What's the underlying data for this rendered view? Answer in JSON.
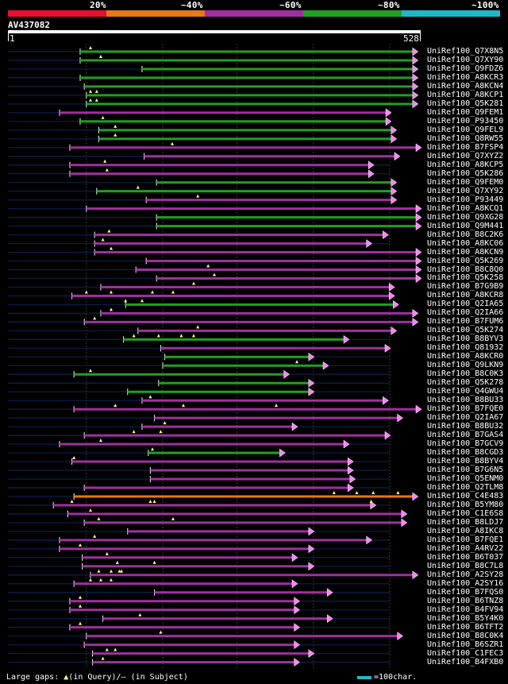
{
  "legend": {
    "markers": [
      "20%",
      "~40%",
      "~60%",
      "~80%",
      "~100%"
    ],
    "colors": [
      "#e8102c",
      "#e87818",
      "#a030a0",
      "#20a020",
      "#20b8c8"
    ]
  },
  "query": {
    "id": "AV437082",
    "start": "1",
    "end": "528",
    "length": 528
  },
  "footer": {
    "gaps_prefix": "Large gaps:",
    "gaps_query": "(in Query)/",
    "gaps_subject": "(in Subject)",
    "scale_label": "=100char."
  },
  "hits": [
    {
      "label": "UniRef100_Q7X8N5",
      "color": "#20a020",
      "start": 0.175,
      "end": 0.992,
      "gaps": [
        0.2
      ]
    },
    {
      "label": "UniRef100_Q7XY90",
      "color": "#20a020",
      "start": 0.175,
      "end": 0.992,
      "gaps": [
        0.225
      ]
    },
    {
      "label": "UniRef100_Q9FDZ6",
      "color": "#20a020",
      "start": 0.325,
      "end": 0.992,
      "gaps": []
    },
    {
      "label": "UniRef100_A8KCR3",
      "color": "#20a020",
      "start": 0.175,
      "end": 0.992,
      "gaps": []
    },
    {
      "label": "UniRef100_A8KCN4",
      "color": "#20a020",
      "start": 0.185,
      "end": 0.992,
      "gaps": []
    },
    {
      "label": "UniRef100_A8KCP1",
      "color": "#20a020",
      "start": 0.19,
      "end": 0.992,
      "gaps": [
        0.2,
        0.215
      ]
    },
    {
      "label": "UniRef100_Q5K281",
      "color": "#20a020",
      "start": 0.19,
      "end": 0.992,
      "gaps": [
        0.2,
        0.215
      ]
    },
    {
      "label": "UniRef100_Q9FEM1",
      "color": "#a030a0",
      "start": 0.125,
      "end": 0.927,
      "gaps": []
    },
    {
      "label": "UniRef100_P93450",
      "color": "#20a020",
      "start": 0.175,
      "end": 0.927,
      "gaps": [
        0.23
      ]
    },
    {
      "label": "UniRef100_Q9FEL9",
      "color": "#20a020",
      "start": 0.22,
      "end": 0.94,
      "gaps": [
        0.26
      ]
    },
    {
      "label": "UniRef100_Q8RW55",
      "color": "#20a020",
      "start": 0.22,
      "end": 0.94,
      "gaps": [
        0.26
      ]
    },
    {
      "label": "UniRef100_B7FSP4",
      "color": "#a030a0",
      "start": 0.15,
      "end": 1.008,
      "gaps": [
        0.398
      ]
    },
    {
      "label": "UniRef100_Q7XYZ2",
      "color": "#a030a0",
      "start": 0.33,
      "end": 0.948,
      "gaps": []
    },
    {
      "label": "UniRef100_A8KCP5",
      "color": "#a030a0",
      "start": 0.15,
      "end": 0.885,
      "gaps": [
        0.235
      ]
    },
    {
      "label": "UniRef100_Q5K286",
      "color": "#a030a0",
      "start": 0.15,
      "end": 0.885,
      "gaps": [
        0.24
      ]
    },
    {
      "label": "UniRef100_Q9FEM0",
      "color": "#20a020",
      "start": 0.36,
      "end": 0.94,
      "gaps": []
    },
    {
      "label": "UniRef100_Q7XY92",
      "color": "#20a020",
      "start": 0.215,
      "end": 0.94,
      "gaps": [
        0.315
      ]
    },
    {
      "label": "UniRef100_P93449",
      "color": "#a030a0",
      "start": 0.335,
      "end": 0.94,
      "gaps": [
        0.46
      ]
    },
    {
      "label": "UniRef100_A8KCQ1",
      "color": "#a030a0",
      "start": 0.19,
      "end": 1.008,
      "gaps": []
    },
    {
      "label": "UniRef100_Q9XG28",
      "color": "#20a020",
      "start": 0.36,
      "end": 1.008,
      "gaps": []
    },
    {
      "label": "UniRef100_Q9M441",
      "color": "#20a020",
      "start": 0.36,
      "end": 1.008,
      "gaps": []
    },
    {
      "label": "UniRef100_B8C2K6",
      "color": "#a030a0",
      "start": 0.21,
      "end": 0.92,
      "gaps": [
        0.245
      ]
    },
    {
      "label": "UniRef100_A8KC06",
      "color": "#a030a0",
      "start": 0.21,
      "end": 0.88,
      "gaps": [
        0.23
      ]
    },
    {
      "label": "UniRef100_A8KCN9",
      "color": "#a030a0",
      "start": 0.21,
      "end": 1.008,
      "gaps": [
        0.25
      ]
    },
    {
      "label": "UniRef100_Q5K269",
      "color": "#a030a0",
      "start": 0.335,
      "end": 1.008,
      "gaps": []
    },
    {
      "label": "UniRef100_B8C8Q0",
      "color": "#a030a0",
      "start": 0.31,
      "end": 1.008,
      "gaps": [
        0.485
      ]
    },
    {
      "label": "UniRef100_Q5K258",
      "color": "#a030a0",
      "start": 0.36,
      "end": 1.008,
      "gaps": [
        0.5
      ]
    },
    {
      "label": "UniRef100_B7G9B9",
      "color": "#a030a0",
      "start": 0.225,
      "end": 0.935,
      "gaps": [
        0.45
      ]
    },
    {
      "label": "UniRef100_A8KCR8",
      "color": "#a030a0",
      "start": 0.155,
      "end": 0.935,
      "gaps": [
        0.19,
        0.25,
        0.35,
        0.4
      ]
    },
    {
      "label": "UniRef100_Q2IA65",
      "color": "#20a020",
      "start": 0.285,
      "end": 0.945,
      "gaps": [
        0.285,
        0.325
      ]
    },
    {
      "label": "UniRef100_Q2IA66",
      "color": "#a030a0",
      "start": 0.225,
      "end": 0.992,
      "gaps": [
        0.25
      ]
    },
    {
      "label": "UniRef100_B7FUM6",
      "color": "#a030a0",
      "start": 0.185,
      "end": 0.992,
      "gaps": [
        0.21
      ]
    },
    {
      "label": "UniRef100_Q5K274",
      "color": "#a030a0",
      "start": 0.315,
      "end": 0.94,
      "gaps": [
        0.46
      ]
    },
    {
      "label": "UniRef100_B8BYV3",
      "color": "#20a020",
      "start": 0.28,
      "end": 0.825,
      "gaps": [
        0.305,
        0.365,
        0.42,
        0.45
      ]
    },
    {
      "label": "UniRef100_Q81932",
      "color": "#a030a0",
      "start": 0.37,
      "end": 0.925,
      "gaps": []
    },
    {
      "label": "UniRef100_A8KCR0",
      "color": "#20a020",
      "start": 0.38,
      "end": 0.74,
      "gaps": []
    },
    {
      "label": "UniRef100_Q9LKN9",
      "color": "#20a020",
      "start": 0.375,
      "end": 0.775,
      "gaps": [
        0.7
      ]
    },
    {
      "label": "UniRef100_B8C0K3",
      "color": "#20a020",
      "start": 0.16,
      "end": 0.68,
      "gaps": [
        0.2
      ]
    },
    {
      "label": "UniRef100_Q5K278",
      "color": "#20a020",
      "start": 0.365,
      "end": 0.74,
      "gaps": []
    },
    {
      "label": "UniRef100_Q4GWU4",
      "color": "#20a020",
      "start": 0.29,
      "end": 0.74,
      "gaps": []
    },
    {
      "label": "UniRef100_B8BU33",
      "color": "#a030a0",
      "start": 0.325,
      "end": 0.92,
      "gaps": [
        0.345
      ]
    },
    {
      "label": "UniRef100_B7FQE0",
      "color": "#a030a0",
      "start": 0.16,
      "end": 1.008,
      "gaps": [
        0.26,
        0.425,
        0.65
      ]
    },
    {
      "label": "UniRef100_Q2IA67",
      "color": "#a030a0",
      "start": 0.355,
      "end": 0.955,
      "gaps": []
    },
    {
      "label": "UniRef100_B8BU32",
      "color": "#a030a0",
      "start": 0.325,
      "end": 0.7,
      "gaps": [
        0.38
      ]
    },
    {
      "label": "UniRef100_B7GAS4",
      "color": "#a030a0",
      "start": 0.185,
      "end": 0.925,
      "gaps": [
        0.305,
        0.37
      ]
    },
    {
      "label": "UniRef100_B7GCV9",
      "color": "#a030a0",
      "start": 0.125,
      "end": 0.825,
      "gaps": [
        0.225
      ]
    },
    {
      "label": "UniRef100_B8CGD3",
      "color": "#20a020",
      "start": 0.34,
      "end": 0.67,
      "gaps": [
        0.35
      ]
    },
    {
      "label": "UniRef100_B8BYV4",
      "color": "#a030a0",
      "start": 0.155,
      "end": 0.835,
      "gaps": [
        0.16
      ]
    },
    {
      "label": "UniRef100_B7G6N5",
      "color": "#a030a0",
      "start": 0.345,
      "end": 0.835,
      "gaps": []
    },
    {
      "label": "UniRef100_Q5ENM0",
      "color": "#a030a0",
      "start": 0.345,
      "end": 0.84,
      "gaps": []
    },
    {
      "label": "UniRef100_Q2TLM8",
      "color": "#a030a0",
      "start": 0.185,
      "end": 0.835,
      "gaps": []
    },
    {
      "label": "UniRef100_C4E483",
      "color": "#e87818",
      "start": 0.16,
      "end": 0.992,
      "gaps": [
        0.79,
        0.845,
        0.885,
        0.945
      ]
    },
    {
      "label": "UniRef100_B5YM80",
      "color": "#a030a0",
      "start": 0.11,
      "end": 0.89,
      "gaps": [
        0.155,
        0.345,
        0.355,
        0.88
      ]
    },
    {
      "label": "UniRef100_C1E6S8",
      "color": "#a030a0",
      "start": 0.145,
      "end": 0.965,
      "gaps": [
        0.2
      ]
    },
    {
      "label": "UniRef100_B8LDJ7",
      "color": "#a030a0",
      "start": 0.185,
      "end": 0.965,
      "gaps": [
        0.22,
        0.4
      ]
    },
    {
      "label": "UniRef100_A8IKC8",
      "color": "#a030a0",
      "start": 0.29,
      "end": 0.74,
      "gaps": []
    },
    {
      "label": "UniRef100_B7FQE1",
      "color": "#a030a0",
      "start": 0.125,
      "end": 0.88,
      "gaps": [
        0.21
      ]
    },
    {
      "label": "UniRef100_A4RV22",
      "color": "#a030a0",
      "start": 0.125,
      "end": 0.74,
      "gaps": [
        0.175
      ]
    },
    {
      "label": "UniRef100_B6T037",
      "color": "#a030a0",
      "start": 0.18,
      "end": 0.7,
      "gaps": [
        0.24
      ]
    },
    {
      "label": "UniRef100_B8C7L8",
      "color": "#a030a0",
      "start": 0.18,
      "end": 0.74,
      "gaps": [
        0.265,
        0.355
      ]
    },
    {
      "label": "UniRef100_A2SY28",
      "color": "#a030a0",
      "start": 0.2,
      "end": 0.992,
      "gaps": [
        0.22,
        0.25,
        0.27,
        0.275
      ]
    },
    {
      "label": "UniRef100_A2SY16",
      "color": "#a030a0",
      "start": 0.16,
      "end": 0.7,
      "gaps": [
        0.2,
        0.225,
        0.25
      ]
    },
    {
      "label": "UniRef100_B7FQS0",
      "color": "#a030a0",
      "start": 0.355,
      "end": 0.785,
      "gaps": []
    },
    {
      "label": "UniRef100_B6TNZ8",
      "color": "#a030a0",
      "start": 0.15,
      "end": 0.705,
      "gaps": [
        0.175
      ]
    },
    {
      "label": "UniRef100_B4FV94",
      "color": "#a030a0",
      "start": 0.15,
      "end": 0.705,
      "gaps": [
        0.175
      ]
    },
    {
      "label": "UniRef100_B5Y4K0",
      "color": "#a030a0",
      "start": 0.23,
      "end": 0.785,
      "gaps": [
        0.32
      ]
    },
    {
      "label": "UniRef100_B6TFT2",
      "color": "#a030a0",
      "start": 0.15,
      "end": 0.705,
      "gaps": [
        0.175
      ]
    },
    {
      "label": "UniRef100_B8C0K4",
      "color": "#a030a0",
      "start": 0.19,
      "end": 0.955,
      "gaps": [
        0.37
      ]
    },
    {
      "label": "UniRef100_B6SZR1",
      "color": "#a030a0",
      "start": 0.185,
      "end": 0.705,
      "gaps": []
    },
    {
      "label": "UniRef100_C1FEC3",
      "color": "#a030a0",
      "start": 0.205,
      "end": 0.74,
      "gaps": [
        0.24,
        0.26
      ]
    },
    {
      "label": "UniRef100_B4FXB0",
      "color": "#a030a0",
      "start": 0.205,
      "end": 0.705,
      "gaps": [
        0.23
      ]
    }
  ]
}
